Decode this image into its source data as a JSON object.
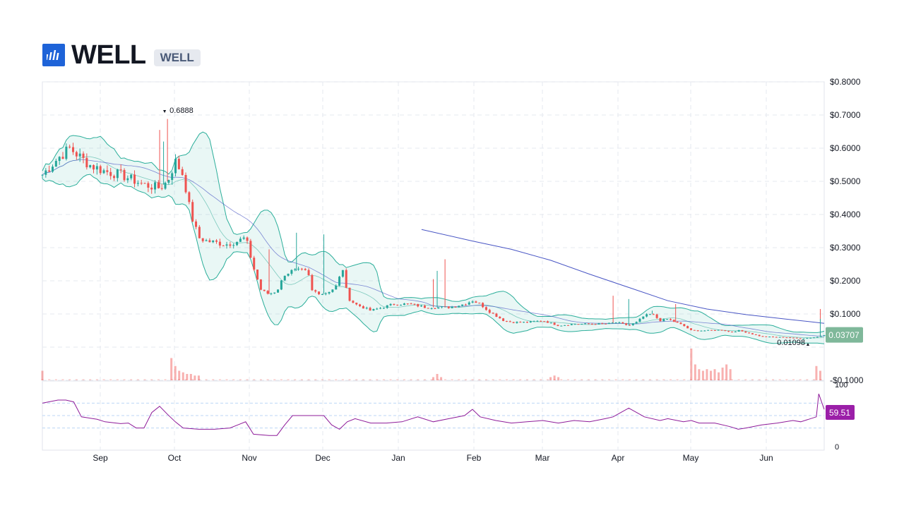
{
  "header": {
    "logo_icon": "bar-chart-logo-icon",
    "title": "WELL",
    "badge": "WELL"
  },
  "colors": {
    "up": "#26a69a",
    "down": "#ef5350",
    "band": "#2bae9a",
    "ma_long": "#4855c4",
    "rsi": "#8e1b99",
    "last_price_bg": "#7fb89a",
    "rsi_badge_bg": "#9b1fa8"
  },
  "chart_data": {
    "type": "candlestick",
    "y_axis": {
      "ticks": [
        "$0.8000",
        "$0.7000",
        "$0.6000",
        "$0.5000",
        "$0.4000",
        "$0.3000",
        "$0.2000",
        "$0.1000",
        "-$0.1000"
      ],
      "range": [
        -0.1,
        0.8
      ]
    },
    "x_axis": {
      "labels": [
        "Sep",
        "Oct",
        "Nov",
        "Dec",
        "Jan",
        "Feb",
        "Mar",
        "Apr",
        "May",
        "Jun"
      ]
    },
    "annotations": {
      "high_label": "0.6888",
      "low_label": "0.01098",
      "last_price": "0.03707"
    },
    "price_path": [
      [
        0.0,
        0.52
      ],
      [
        0.02,
        0.57
      ],
      [
        0.035,
        0.6
      ],
      [
        0.06,
        0.55
      ],
      [
        0.08,
        0.53
      ],
      [
        0.1,
        0.52
      ],
      [
        0.12,
        0.5
      ],
      [
        0.13,
        0.49
      ],
      [
        0.15,
        0.48
      ],
      [
        0.16,
        0.5
      ],
      [
        0.17,
        0.56
      ],
      [
        0.18,
        0.52
      ],
      [
        0.19,
        0.4
      ],
      [
        0.2,
        0.33
      ],
      [
        0.21,
        0.32
      ],
      [
        0.235,
        0.31
      ],
      [
        0.25,
        0.32
      ],
      [
        0.26,
        0.33
      ],
      [
        0.27,
        0.24
      ],
      [
        0.28,
        0.17
      ],
      [
        0.29,
        0.16
      ],
      [
        0.3,
        0.17
      ],
      [
        0.31,
        0.22
      ],
      [
        0.32,
        0.23
      ],
      [
        0.335,
        0.23
      ],
      [
        0.34,
        0.22
      ],
      [
        0.345,
        0.17
      ],
      [
        0.36,
        0.16
      ],
      [
        0.375,
        0.18
      ],
      [
        0.385,
        0.24
      ],
      [
        0.39,
        0.15
      ],
      [
        0.4,
        0.13
      ],
      [
        0.41,
        0.12
      ],
      [
        0.42,
        0.11
      ],
      [
        0.435,
        0.12
      ],
      [
        0.45,
        0.13
      ],
      [
        0.47,
        0.13
      ],
      [
        0.49,
        0.12
      ],
      [
        0.5,
        0.12
      ],
      [
        0.52,
        0.12
      ],
      [
        0.54,
        0.13
      ],
      [
        0.55,
        0.14
      ],
      [
        0.56,
        0.13
      ],
      [
        0.57,
        0.11
      ],
      [
        0.59,
        0.08
      ],
      [
        0.6,
        0.075
      ],
      [
        0.62,
        0.075
      ],
      [
        0.64,
        0.08
      ],
      [
        0.66,
        0.065
      ],
      [
        0.68,
        0.07
      ],
      [
        0.7,
        0.07
      ],
      [
        0.72,
        0.07
      ],
      [
        0.735,
        0.075
      ],
      [
        0.75,
        0.065
      ],
      [
        0.76,
        0.075
      ],
      [
        0.77,
        0.095
      ],
      [
        0.78,
        0.1
      ],
      [
        0.79,
        0.08
      ],
      [
        0.8,
        0.085
      ],
      [
        0.81,
        0.075
      ],
      [
        0.82,
        0.065
      ],
      [
        0.83,
        0.05
      ],
      [
        0.85,
        0.05
      ],
      [
        0.87,
        0.052
      ],
      [
        0.88,
        0.045
      ],
      [
        0.89,
        0.05
      ],
      [
        0.9,
        0.045
      ],
      [
        0.91,
        0.038
      ],
      [
        0.92,
        0.032
      ],
      [
        0.94,
        0.03
      ],
      [
        0.95,
        0.03
      ],
      [
        0.96,
        0.028
      ],
      [
        0.97,
        0.025
      ],
      [
        0.98,
        0.028
      ],
      [
        0.99,
        0.03
      ],
      [
        1.0,
        0.037
      ]
    ],
    "ma_long_path": [
      [
        0.485,
        0.355
      ],
      [
        0.55,
        0.32
      ],
      [
        0.6,
        0.295
      ],
      [
        0.65,
        0.262
      ],
      [
        0.7,
        0.22
      ],
      [
        0.75,
        0.18
      ],
      [
        0.8,
        0.14
      ],
      [
        0.85,
        0.115
      ],
      [
        0.9,
        0.098
      ],
      [
        0.95,
        0.085
      ],
      [
        1.0,
        0.072
      ]
    ],
    "spikes": [
      [
        0.15,
        0.655
      ],
      [
        0.155,
        0.62
      ],
      [
        0.16,
        0.688
      ],
      [
        0.325,
        0.345
      ],
      [
        0.29,
        0.295
      ],
      [
        0.36,
        0.34
      ],
      [
        0.5,
        0.205
      ],
      [
        0.505,
        0.23
      ],
      [
        0.515,
        0.265
      ],
      [
        0.505,
        0.16
      ],
      [
        0.73,
        0.155
      ],
      [
        0.75,
        0.145
      ],
      [
        0.81,
        0.13
      ],
      [
        0.78,
        0.11
      ],
      [
        0.995,
        0.115
      ],
      [
        0.995,
        0.085
      ]
    ],
    "volume_spikes": [
      [
        0.165,
        0.7
      ],
      [
        0.17,
        0.45
      ],
      [
        0.175,
        0.3
      ],
      [
        0.18,
        0.25
      ],
      [
        0.185,
        0.2
      ],
      [
        0.19,
        0.2
      ],
      [
        0.195,
        0.15
      ],
      [
        0.2,
        0.15
      ],
      [
        0.5,
        0.1
      ],
      [
        0.505,
        0.2
      ],
      [
        0.51,
        0.1
      ],
      [
        0.65,
        0.1
      ],
      [
        0.655,
        0.15
      ],
      [
        0.66,
        0.1
      ],
      [
        0.83,
        1.0
      ],
      [
        0.835,
        0.5
      ],
      [
        0.84,
        0.35
      ],
      [
        0.845,
        0.3
      ],
      [
        0.85,
        0.35
      ],
      [
        0.855,
        0.3
      ],
      [
        0.86,
        0.35
      ],
      [
        0.865,
        0.25
      ],
      [
        0.87,
        0.4
      ],
      [
        0.875,
        0.5
      ],
      [
        0.88,
        0.35
      ],
      [
        0.0,
        0.3
      ],
      [
        0.99,
        0.45
      ],
      [
        0.995,
        0.3
      ]
    ],
    "rsi": {
      "ticks": [
        "100",
        "0"
      ],
      "last_value": "59.51",
      "path": [
        [
          0.0,
          70
        ],
        [
          0.02,
          75
        ],
        [
          0.03,
          75
        ],
        [
          0.04,
          72
        ],
        [
          0.05,
          48
        ],
        [
          0.07,
          44
        ],
        [
          0.08,
          40
        ],
        [
          0.1,
          37
        ],
        [
          0.11,
          38
        ],
        [
          0.12,
          30
        ],
        [
          0.13,
          30
        ],
        [
          0.14,
          55
        ],
        [
          0.15,
          65
        ],
        [
          0.16,
          52
        ],
        [
          0.17,
          40
        ],
        [
          0.18,
          30
        ],
        [
          0.2,
          28
        ],
        [
          0.22,
          28
        ],
        [
          0.24,
          30
        ],
        [
          0.25,
          35
        ],
        [
          0.26,
          40
        ],
        [
          0.27,
          20
        ],
        [
          0.29,
          18
        ],
        [
          0.3,
          18
        ],
        [
          0.31,
          35
        ],
        [
          0.32,
          50
        ],
        [
          0.34,
          50
        ],
        [
          0.36,
          50
        ],
        [
          0.37,
          35
        ],
        [
          0.38,
          28
        ],
        [
          0.39,
          40
        ],
        [
          0.4,
          45
        ],
        [
          0.42,
          38
        ],
        [
          0.44,
          38
        ],
        [
          0.46,
          40
        ],
        [
          0.48,
          48
        ],
        [
          0.5,
          40
        ],
        [
          0.52,
          45
        ],
        [
          0.54,
          50
        ],
        [
          0.55,
          60
        ],
        [
          0.56,
          48
        ],
        [
          0.58,
          42
        ],
        [
          0.6,
          38
        ],
        [
          0.62,
          40
        ],
        [
          0.64,
          42
        ],
        [
          0.66,
          38
        ],
        [
          0.68,
          42
        ],
        [
          0.7,
          40
        ],
        [
          0.72,
          45
        ],
        [
          0.73,
          48
        ],
        [
          0.74,
          55
        ],
        [
          0.75,
          62
        ],
        [
          0.76,
          55
        ],
        [
          0.77,
          48
        ],
        [
          0.79,
          42
        ],
        [
          0.8,
          45
        ],
        [
          0.82,
          40
        ],
        [
          0.83,
          42
        ],
        [
          0.84,
          38
        ],
        [
          0.86,
          38
        ],
        [
          0.88,
          32
        ],
        [
          0.89,
          28
        ],
        [
          0.9,
          30
        ],
        [
          0.92,
          35
        ],
        [
          0.94,
          38
        ],
        [
          0.96,
          42
        ],
        [
          0.97,
          40
        ],
        [
          0.98,
          44
        ],
        [
          0.99,
          48
        ],
        [
          0.993,
          85
        ],
        [
          1.0,
          60
        ]
      ]
    }
  }
}
